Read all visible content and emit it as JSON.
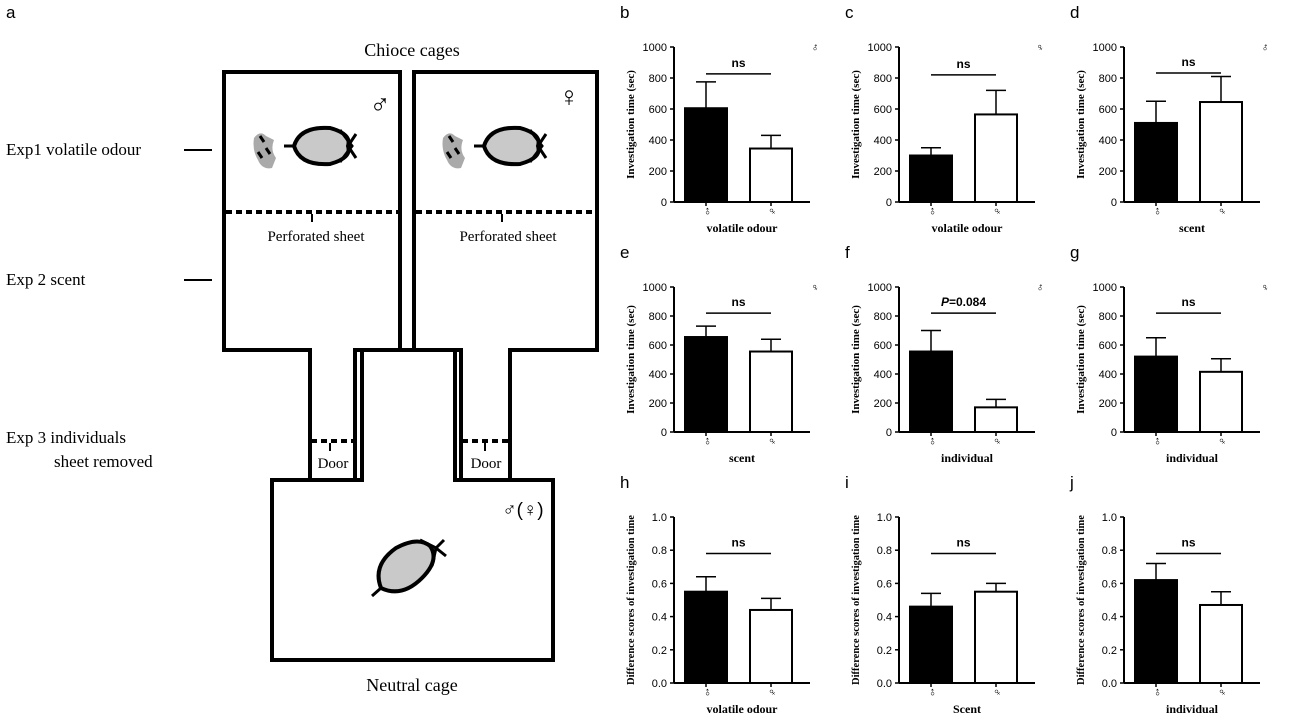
{
  "panel_a": {
    "letter": "a",
    "title_top": "Chioce cages",
    "title_bottom": "Neutral cage",
    "exp1": "Exp1 volatile odour",
    "exp2": "Exp 2 scent",
    "exp3_line1": "Exp 3  individuals",
    "exp3_line2": "sheet removed",
    "perforated_left": "Perforated sheet",
    "perforated_right": "Perforated sheet",
    "door_left": "Door",
    "door_right": "Door",
    "male_symbol": "♂",
    "female_symbol": "♀",
    "neutral_symbol": "♂(♀)"
  },
  "chart_data": [
    {
      "id": "b",
      "type": "bar",
      "categories": [
        "♂",
        "♀"
      ],
      "values": [
        605,
        345
      ],
      "errors": [
        170,
        85
      ],
      "xlabel": "volatile odour",
      "ylabel": "Investigation time (sec)",
      "ylim": [
        0,
        1000
      ],
      "yticks": [
        "0",
        "200",
        "400",
        "600",
        "800",
        "1000"
      ],
      "annotation": "ns",
      "annotation_prefix": "",
      "sex": "♂",
      "colors": [
        "#000000",
        "#ffffff"
      ]
    },
    {
      "id": "c",
      "type": "bar",
      "categories": [
        "♂",
        "♀"
      ],
      "values": [
        300,
        565
      ],
      "errors": [
        50,
        155
      ],
      "xlabel": "volatile odour",
      "ylabel": "Investigation time (sec)",
      "ylim": [
        0,
        1000
      ],
      "yticks": [
        "0",
        "200",
        "400",
        "600",
        "800",
        "1000"
      ],
      "annotation": "ns",
      "annotation_prefix": "",
      "sex": "♀",
      "colors": [
        "#000000",
        "#ffffff"
      ]
    },
    {
      "id": "d",
      "type": "bar",
      "categories": [
        "♂",
        "♀"
      ],
      "values": [
        510,
        645
      ],
      "errors": [
        140,
        165
      ],
      "xlabel": "scent",
      "ylabel": "Investigation time (sec)",
      "ylim": [
        0,
        1000
      ],
      "yticks": [
        "0",
        "200",
        "400",
        "600",
        "800",
        "1000"
      ],
      "annotation": "ns",
      "annotation_prefix": "",
      "sex": "♂",
      "colors": [
        "#000000",
        "#ffffff"
      ]
    },
    {
      "id": "e",
      "type": "bar",
      "categories": [
        "♂",
        "♀"
      ],
      "values": [
        655,
        555
      ],
      "errors": [
        75,
        85
      ],
      "xlabel": "scent",
      "ylabel": "Investigation time (sec)",
      "ylim": [
        0,
        1000
      ],
      "yticks": [
        "0",
        "200",
        "400",
        "600",
        "800",
        "1000"
      ],
      "annotation": "ns",
      "annotation_prefix": "",
      "sex": "♀",
      "colors": [
        "#000000",
        "#ffffff"
      ]
    },
    {
      "id": "f",
      "type": "bar",
      "categories": [
        "♂",
        "♀"
      ],
      "values": [
        555,
        170
      ],
      "errors": [
        145,
        55
      ],
      "xlabel": "individual",
      "ylabel": "Investigation time (sec)",
      "ylim": [
        0,
        1000
      ],
      "yticks": [
        "0",
        "200",
        "400",
        "600",
        "800",
        "1000"
      ],
      "annotation": "=0.084",
      "annotation_prefix": "P",
      "sex": "♂",
      "colors": [
        "#000000",
        "#ffffff"
      ]
    },
    {
      "id": "g",
      "type": "bar",
      "categories": [
        "♂",
        "♀"
      ],
      "values": [
        520,
        415
      ],
      "errors": [
        130,
        90
      ],
      "xlabel": "individual",
      "ylabel": "Investigation time (sec)",
      "ylim": [
        0,
        1000
      ],
      "yticks": [
        "0",
        "200",
        "400",
        "600",
        "800",
        "1000"
      ],
      "annotation": "ns",
      "annotation_prefix": "",
      "sex": "♀",
      "colors": [
        "#000000",
        "#ffffff"
      ]
    },
    {
      "id": "h",
      "type": "bar",
      "categories": [
        "♂",
        "♀"
      ],
      "values": [
        0.55,
        0.44
      ],
      "errors": [
        0.09,
        0.07
      ],
      "xlabel": "volatile odour",
      "ylabel": "Difference scores of investigation time",
      "ylim": [
        0,
        1
      ],
      "yticks": [
        "0.0",
        "0.2",
        "0.4",
        "0.6",
        "0.8",
        "1.0"
      ],
      "annotation": "ns",
      "annotation_prefix": "",
      "sex": "",
      "colors": [
        "#000000",
        "#ffffff"
      ]
    },
    {
      "id": "i",
      "type": "bar",
      "categories": [
        "♂",
        "♀"
      ],
      "values": [
        0.46,
        0.55
      ],
      "errors": [
        0.08,
        0.05
      ],
      "xlabel": "Scent",
      "ylabel": "Difference scores of investigation time",
      "ylim": [
        0,
        1
      ],
      "yticks": [
        "0.0",
        "0.2",
        "0.4",
        "0.6",
        "0.8",
        "1.0"
      ],
      "annotation": "ns",
      "annotation_prefix": "",
      "sex": "",
      "colors": [
        "#000000",
        "#ffffff"
      ]
    },
    {
      "id": "j",
      "type": "bar",
      "categories": [
        "♂",
        "♀"
      ],
      "values": [
        0.62,
        0.47
      ],
      "errors": [
        0.1,
        0.08
      ],
      "xlabel": "individual",
      "ylabel": "Difference scores of investigation time",
      "ylim": [
        0,
        1
      ],
      "yticks": [
        "0.0",
        "0.2",
        "0.4",
        "0.6",
        "0.8",
        "1.0"
      ],
      "annotation": "ns",
      "annotation_prefix": "",
      "sex": "",
      "colors": [
        "#000000",
        "#ffffff"
      ]
    }
  ]
}
